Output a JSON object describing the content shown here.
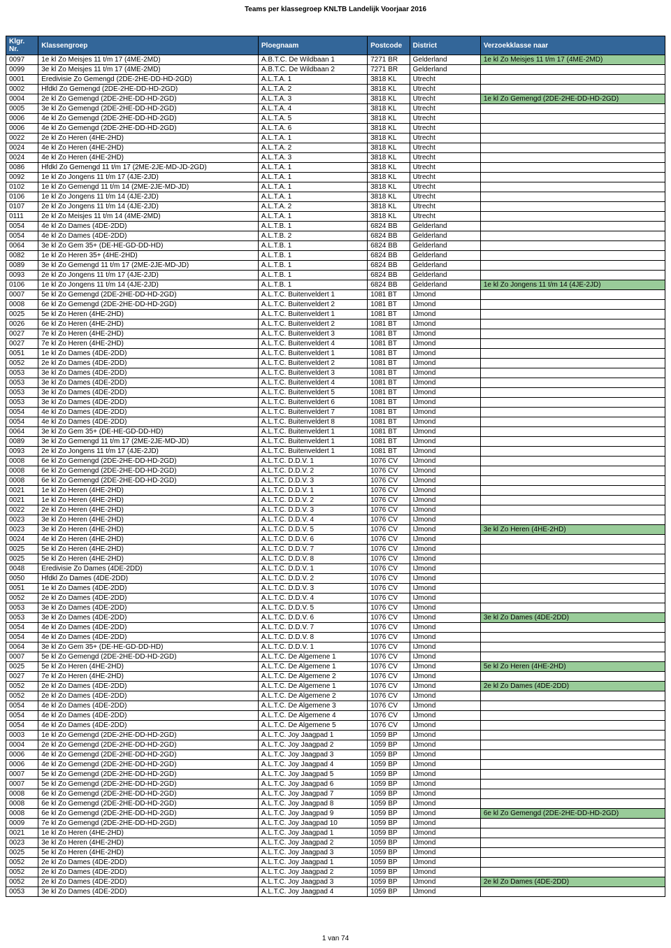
{
  "title": "Teams per klassegroep KNLTB Landelijk Voorjaar 2016",
  "headers": {
    "klgr": "Klgr. Nr.",
    "klassen": "Klassengroep",
    "ploeg": "Ploegnaam",
    "postcode": "Postcode",
    "district": "District",
    "verzoek": "Verzoekklasse naar"
  },
  "colors": {
    "header_bg": "#336699",
    "header_fg": "#ffffff",
    "highlight_bg": "#99cc99",
    "border": "#000000",
    "background": "#ffffff"
  },
  "widths": {
    "klgr": 42,
    "klassen": 286,
    "ploeg": 142,
    "postcode": 55,
    "district": 92,
    "verzoek": 240
  },
  "fontsize": 10,
  "page_number": "1 van 74",
  "rows": [
    {
      "klgr": "0097",
      "klassen": "1e kl Zo Meisjes 11 t/m 17 (4ME-2MD)",
      "ploeg": "A.B.T.C. De Wildbaan 1",
      "postcode": "7271 BR",
      "district": "Gelderland",
      "verzoek": "1e kl Zo Meisjes 11 t/m 17 (4ME-2MD)",
      "hi": true
    },
    {
      "klgr": "0099",
      "klassen": "3e kl Zo Meisjes 11 t/m 17 (4ME-2MD)",
      "ploeg": "A.B.T.C. De Wildbaan 2",
      "postcode": "7271 BR",
      "district": "Gelderland",
      "verzoek": "",
      "hi": false
    },
    {
      "klgr": "0001",
      "klassen": "Eredivisie Zo Gemengd (2DE-2HE-DD-HD-2GD)",
      "ploeg": "A.L.T.A. 1",
      "postcode": "3818 KL",
      "district": "Utrecht",
      "verzoek": "",
      "hi": false
    },
    {
      "klgr": "0002",
      "klassen": "Hfdkl Zo Gemengd (2DE-2HE-DD-HD-2GD)",
      "ploeg": "A.L.T.A. 2",
      "postcode": "3818 KL",
      "district": "Utrecht",
      "verzoek": "",
      "hi": false
    },
    {
      "klgr": "0004",
      "klassen": "2e kl Zo Gemengd (2DE-2HE-DD-HD-2GD)",
      "ploeg": "A.L.T.A. 3",
      "postcode": "3818 KL",
      "district": "Utrecht",
      "verzoek": "1e kl Zo Gemengd (2DE-2HE-DD-HD-2GD)",
      "hi": true
    },
    {
      "klgr": "0005",
      "klassen": "3e kl Zo Gemengd (2DE-2HE-DD-HD-2GD)",
      "ploeg": "A.L.T.A. 4",
      "postcode": "3818 KL",
      "district": "Utrecht",
      "verzoek": "",
      "hi": false
    },
    {
      "klgr": "0006",
      "klassen": "4e kl Zo Gemengd (2DE-2HE-DD-HD-2GD)",
      "ploeg": "A.L.T.A. 5",
      "postcode": "3818 KL",
      "district": "Utrecht",
      "verzoek": "",
      "hi": false
    },
    {
      "klgr": "0006",
      "klassen": "4e kl Zo Gemengd (2DE-2HE-DD-HD-2GD)",
      "ploeg": "A.L.T.A. 6",
      "postcode": "3818 KL",
      "district": "Utrecht",
      "verzoek": "",
      "hi": false
    },
    {
      "klgr": "0022",
      "klassen": "2e kl Zo Heren (4HE-2HD)",
      "ploeg": "A.L.T.A. 1",
      "postcode": "3818 KL",
      "district": "Utrecht",
      "verzoek": "",
      "hi": false
    },
    {
      "klgr": "0024",
      "klassen": "4e kl Zo Heren (4HE-2HD)",
      "ploeg": "A.L.T.A. 2",
      "postcode": "3818 KL",
      "district": "Utrecht",
      "verzoek": "",
      "hi": false
    },
    {
      "klgr": "0024",
      "klassen": "4e kl Zo Heren (4HE-2HD)",
      "ploeg": "A.L.T.A. 3",
      "postcode": "3818 KL",
      "district": "Utrecht",
      "verzoek": "",
      "hi": false
    },
    {
      "klgr": "0086",
      "klassen": "Hfdkl Zo Gemengd 11 t/m 17 (2ME-2JE-MD-JD-2GD)",
      "ploeg": "A.L.T.A. 1",
      "postcode": "3818 KL",
      "district": "Utrecht",
      "verzoek": "",
      "hi": false
    },
    {
      "klgr": "0092",
      "klassen": "1e kl Zo Jongens 11 t/m 17 (4JE-2JD)",
      "ploeg": "A.L.T.A. 1",
      "postcode": "3818 KL",
      "district": "Utrecht",
      "verzoek": "",
      "hi": false
    },
    {
      "klgr": "0102",
      "klassen": "1e kl Zo Gemengd 11 t/m 14 (2ME-2JE-MD-JD)",
      "ploeg": "A.L.T.A. 1",
      "postcode": "3818 KL",
      "district": "Utrecht",
      "verzoek": "",
      "hi": false
    },
    {
      "klgr": "0106",
      "klassen": "1e kl Zo Jongens 11 t/m 14 (4JE-2JD)",
      "ploeg": "A.L.T.A. 1",
      "postcode": "3818 KL",
      "district": "Utrecht",
      "verzoek": "",
      "hi": false
    },
    {
      "klgr": "0107",
      "klassen": "2e kl Zo Jongens 11 t/m 14 (4JE-2JD)",
      "ploeg": "A.L.T.A. 2",
      "postcode": "3818 KL",
      "district": "Utrecht",
      "verzoek": "",
      "hi": false
    },
    {
      "klgr": "0111",
      "klassen": "2e kl Zo Meisjes 11 t/m 14 (4ME-2MD)",
      "ploeg": "A.L.T.A. 1",
      "postcode": "3818 KL",
      "district": "Utrecht",
      "verzoek": "",
      "hi": false
    },
    {
      "klgr": "0054",
      "klassen": "4e kl Zo Dames (4DE-2DD)",
      "ploeg": "A.L.T.B. 1",
      "postcode": "6824 BB",
      "district": "Gelderland",
      "verzoek": "",
      "hi": false
    },
    {
      "klgr": "0054",
      "klassen": "4e kl Zo Dames (4DE-2DD)",
      "ploeg": "A.L.T.B. 2",
      "postcode": "6824 BB",
      "district": "Gelderland",
      "verzoek": "",
      "hi": false
    },
    {
      "klgr": "0064",
      "klassen": "3e kl Zo Gem 35+ (DE-HE-GD-DD-HD)",
      "ploeg": "A.L.T.B. 1",
      "postcode": "6824 BB",
      "district": "Gelderland",
      "verzoek": "",
      "hi": false
    },
    {
      "klgr": "0082",
      "klassen": "1e kl Zo Heren 35+ (4HE-2HD)",
      "ploeg": "A.L.T.B. 1",
      "postcode": "6824 BB",
      "district": "Gelderland",
      "verzoek": "",
      "hi": false
    },
    {
      "klgr": "0089",
      "klassen": "3e kl Zo Gemengd 11 t/m 17 (2ME-2JE-MD-JD)",
      "ploeg": "A.L.T.B. 1",
      "postcode": "6824 BB",
      "district": "Gelderland",
      "verzoek": "",
      "hi": false
    },
    {
      "klgr": "0093",
      "klassen": "2e kl Zo Jongens 11 t/m 17 (4JE-2JD)",
      "ploeg": "A.L.T.B. 1",
      "postcode": "6824 BB",
      "district": "Gelderland",
      "verzoek": "",
      "hi": false
    },
    {
      "klgr": "0106",
      "klassen": "1e kl Zo Jongens 11 t/m 14 (4JE-2JD)",
      "ploeg": "A.L.T.B. 1",
      "postcode": "6824 BB",
      "district": "Gelderland",
      "verzoek": "1e kl Zo Jongens 11 t/m 14 (4JE-2JD)",
      "hi": true
    },
    {
      "klgr": "0007",
      "klassen": "5e kl Zo Gemengd (2DE-2HE-DD-HD-2GD)",
      "ploeg": "A.L.T.C. Buitenveldert 1",
      "postcode": "1081 BT",
      "district": "IJmond",
      "verzoek": "",
      "hi": false
    },
    {
      "klgr": "0008",
      "klassen": "6e kl Zo Gemengd (2DE-2HE-DD-HD-2GD)",
      "ploeg": "A.L.T.C. Buitenveldert 2",
      "postcode": "1081 BT",
      "district": "IJmond",
      "verzoek": "",
      "hi": false
    },
    {
      "klgr": "0025",
      "klassen": "5e kl Zo Heren (4HE-2HD)",
      "ploeg": "A.L.T.C. Buitenveldert 1",
      "postcode": "1081 BT",
      "district": "IJmond",
      "verzoek": "",
      "hi": false
    },
    {
      "klgr": "0026",
      "klassen": "6e kl Zo Heren (4HE-2HD)",
      "ploeg": "A.L.T.C. Buitenveldert 2",
      "postcode": "1081 BT",
      "district": "IJmond",
      "verzoek": "",
      "hi": false
    },
    {
      "klgr": "0027",
      "klassen": "7e kl Zo Heren (4HE-2HD)",
      "ploeg": "A.L.T.C. Buitenveldert 3",
      "postcode": "1081 BT",
      "district": "IJmond",
      "verzoek": "",
      "hi": false
    },
    {
      "klgr": "0027",
      "klassen": "7e kl Zo Heren (4HE-2HD)",
      "ploeg": "A.L.T.C. Buitenveldert 4",
      "postcode": "1081 BT",
      "district": "IJmond",
      "verzoek": "",
      "hi": false
    },
    {
      "klgr": "0051",
      "klassen": "1e kl Zo Dames (4DE-2DD)",
      "ploeg": "A.L.T.C. Buitenveldert 1",
      "postcode": "1081 BT",
      "district": "IJmond",
      "verzoek": "",
      "hi": false
    },
    {
      "klgr": "0052",
      "klassen": "2e kl Zo Dames (4DE-2DD)",
      "ploeg": "A.L.T.C. Buitenveldert 2",
      "postcode": "1081 BT",
      "district": "IJmond",
      "verzoek": "",
      "hi": false
    },
    {
      "klgr": "0053",
      "klassen": "3e kl Zo Dames (4DE-2DD)",
      "ploeg": "A.L.T.C. Buitenveldert 3",
      "postcode": "1081 BT",
      "district": "IJmond",
      "verzoek": "",
      "hi": false
    },
    {
      "klgr": "0053",
      "klassen": "3e kl Zo Dames (4DE-2DD)",
      "ploeg": "A.L.T.C. Buitenveldert 4",
      "postcode": "1081 BT",
      "district": "IJmond",
      "verzoek": "",
      "hi": false
    },
    {
      "klgr": "0053",
      "klassen": "3e kl Zo Dames (4DE-2DD)",
      "ploeg": "A.L.T.C. Buitenveldert 5",
      "postcode": "1081 BT",
      "district": "IJmond",
      "verzoek": "",
      "hi": false
    },
    {
      "klgr": "0053",
      "klassen": "3e kl Zo Dames (4DE-2DD)",
      "ploeg": "A.L.T.C. Buitenveldert 6",
      "postcode": "1081 BT",
      "district": "IJmond",
      "verzoek": "",
      "hi": false
    },
    {
      "klgr": "0054",
      "klassen": "4e kl Zo Dames (4DE-2DD)",
      "ploeg": "A.L.T.C. Buitenveldert 7",
      "postcode": "1081 BT",
      "district": "IJmond",
      "verzoek": "",
      "hi": false
    },
    {
      "klgr": "0054",
      "klassen": "4e kl Zo Dames (4DE-2DD)",
      "ploeg": "A.L.T.C. Buitenveldert 8",
      "postcode": "1081 BT",
      "district": "IJmond",
      "verzoek": "",
      "hi": false
    },
    {
      "klgr": "0064",
      "klassen": "3e kl Zo Gem 35+ (DE-HE-GD-DD-HD)",
      "ploeg": "A.L.T.C. Buitenveldert 1",
      "postcode": "1081 BT",
      "district": "IJmond",
      "verzoek": "",
      "hi": false
    },
    {
      "klgr": "0089",
      "klassen": "3e kl Zo Gemengd 11 t/m 17 (2ME-2JE-MD-JD)",
      "ploeg": "A.L.T.C. Buitenveldert 1",
      "postcode": "1081 BT",
      "district": "IJmond",
      "verzoek": "",
      "hi": false
    },
    {
      "klgr": "0093",
      "klassen": "2e kl Zo Jongens 11 t/m 17 (4JE-2JD)",
      "ploeg": "A.L.T.C. Buitenveldert 1",
      "postcode": "1081 BT",
      "district": "IJmond",
      "verzoek": "",
      "hi": false
    },
    {
      "klgr": "0008",
      "klassen": "6e kl Zo Gemengd (2DE-2HE-DD-HD-2GD)",
      "ploeg": "A.L.T.C. D.D.V. 1",
      "postcode": "1076 CV",
      "district": "IJmond",
      "verzoek": "",
      "hi": false
    },
    {
      "klgr": "0008",
      "klassen": "6e kl Zo Gemengd (2DE-2HE-DD-HD-2GD)",
      "ploeg": "A.L.T.C. D.D.V. 2",
      "postcode": "1076 CV",
      "district": "IJmond",
      "verzoek": "",
      "hi": false
    },
    {
      "klgr": "0008",
      "klassen": "6e kl Zo Gemengd (2DE-2HE-DD-HD-2GD)",
      "ploeg": "A.L.T.C. D.D.V. 3",
      "postcode": "1076 CV",
      "district": "IJmond",
      "verzoek": "",
      "hi": false
    },
    {
      "klgr": "0021",
      "klassen": "1e kl Zo Heren (4HE-2HD)",
      "ploeg": "A.L.T.C. D.D.V. 1",
      "postcode": "1076 CV",
      "district": "IJmond",
      "verzoek": "",
      "hi": false
    },
    {
      "klgr": "0021",
      "klassen": "1e kl Zo Heren (4HE-2HD)",
      "ploeg": "A.L.T.C. D.D.V. 2",
      "postcode": "1076 CV",
      "district": "IJmond",
      "verzoek": "",
      "hi": false
    },
    {
      "klgr": "0022",
      "klassen": "2e kl Zo Heren (4HE-2HD)",
      "ploeg": "A.L.T.C. D.D.V. 3",
      "postcode": "1076 CV",
      "district": "IJmond",
      "verzoek": "",
      "hi": false
    },
    {
      "klgr": "0023",
      "klassen": "3e kl Zo Heren (4HE-2HD)",
      "ploeg": "A.L.T.C. D.D.V. 4",
      "postcode": "1076 CV",
      "district": "IJmond",
      "verzoek": "",
      "hi": false
    },
    {
      "klgr": "0023",
      "klassen": "3e kl Zo Heren (4HE-2HD)",
      "ploeg": "A.L.T.C. D.D.V. 5",
      "postcode": "1076 CV",
      "district": "IJmond",
      "verzoek": "3e kl Zo Heren (4HE-2HD)",
      "hi": true
    },
    {
      "klgr": "0024",
      "klassen": "4e kl Zo Heren (4HE-2HD)",
      "ploeg": "A.L.T.C. D.D.V. 6",
      "postcode": "1076 CV",
      "district": "IJmond",
      "verzoek": "",
      "hi": false
    },
    {
      "klgr": "0025",
      "klassen": "5e kl Zo Heren (4HE-2HD)",
      "ploeg": "A.L.T.C. D.D.V. 7",
      "postcode": "1076 CV",
      "district": "IJmond",
      "verzoek": "",
      "hi": false
    },
    {
      "klgr": "0025",
      "klassen": "5e kl Zo Heren (4HE-2HD)",
      "ploeg": "A.L.T.C. D.D.V. 8",
      "postcode": "1076 CV",
      "district": "IJmond",
      "verzoek": "",
      "hi": false
    },
    {
      "klgr": "0048",
      "klassen": "Eredivisie Zo Dames (4DE-2DD)",
      "ploeg": "A.L.T.C. D.D.V. 1",
      "postcode": "1076 CV",
      "district": "IJmond",
      "verzoek": "",
      "hi": false
    },
    {
      "klgr": "0050",
      "klassen": "Hfdkl Zo Dames (4DE-2DD)",
      "ploeg": "A.L.T.C. D.D.V. 2",
      "postcode": "1076 CV",
      "district": "IJmond",
      "verzoek": "",
      "hi": false
    },
    {
      "klgr": "0051",
      "klassen": "1e kl Zo Dames (4DE-2DD)",
      "ploeg": "A.L.T.C. D.D.V. 3",
      "postcode": "1076 CV",
      "district": "IJmond",
      "verzoek": "",
      "hi": false
    },
    {
      "klgr": "0052",
      "klassen": "2e kl Zo Dames (4DE-2DD)",
      "ploeg": "A.L.T.C. D.D.V. 4",
      "postcode": "1076 CV",
      "district": "IJmond",
      "verzoek": "",
      "hi": false
    },
    {
      "klgr": "0053",
      "klassen": "3e kl Zo Dames (4DE-2DD)",
      "ploeg": "A.L.T.C. D.D.V. 5",
      "postcode": "1076 CV",
      "district": "IJmond",
      "verzoek": "",
      "hi": false
    },
    {
      "klgr": "0053",
      "klassen": "3e kl Zo Dames (4DE-2DD)",
      "ploeg": "A.L.T.C. D.D.V. 6",
      "postcode": "1076 CV",
      "district": "IJmond",
      "verzoek": "3e kl Zo Dames (4DE-2DD)",
      "hi": true
    },
    {
      "klgr": "0054",
      "klassen": "4e kl Zo Dames (4DE-2DD)",
      "ploeg": "A.L.T.C. D.D.V. 7",
      "postcode": "1076 CV",
      "district": "IJmond",
      "verzoek": "",
      "hi": false
    },
    {
      "klgr": "0054",
      "klassen": "4e kl Zo Dames (4DE-2DD)",
      "ploeg": "A.L.T.C. D.D.V. 8",
      "postcode": "1076 CV",
      "district": "IJmond",
      "verzoek": "",
      "hi": false
    },
    {
      "klgr": "0064",
      "klassen": "3e kl Zo Gem 35+ (DE-HE-GD-DD-HD)",
      "ploeg": "A.L.T.C. D.D.V. 1",
      "postcode": "1076 CV",
      "district": "IJmond",
      "verzoek": "",
      "hi": false
    },
    {
      "klgr": "0007",
      "klassen": "5e kl Zo Gemengd (2DE-2HE-DD-HD-2GD)",
      "ploeg": "A.L.T.C. De Algemene 1",
      "postcode": "1076 CV",
      "district": "IJmond",
      "verzoek": "",
      "hi": false
    },
    {
      "klgr": "0025",
      "klassen": "5e kl Zo Heren (4HE-2HD)",
      "ploeg": "A.L.T.C. De Algemene 1",
      "postcode": "1076 CV",
      "district": "IJmond",
      "verzoek": "5e kl Zo Heren (4HE-2HD)",
      "hi": true
    },
    {
      "klgr": "0027",
      "klassen": "7e kl Zo Heren (4HE-2HD)",
      "ploeg": "A.L.T.C. De Algemene 2",
      "postcode": "1076 CV",
      "district": "IJmond",
      "verzoek": "",
      "hi": false
    },
    {
      "klgr": "0052",
      "klassen": "2e kl Zo Dames (4DE-2DD)",
      "ploeg": "A.L.T.C. De Algemene 1",
      "postcode": "1076 CV",
      "district": "IJmond",
      "verzoek": "2e kl Zo Dames (4DE-2DD)",
      "hi": true
    },
    {
      "klgr": "0052",
      "klassen": "2e kl Zo Dames (4DE-2DD)",
      "ploeg": "A.L.T.C. De Algemene 2",
      "postcode": "1076 CV",
      "district": "IJmond",
      "verzoek": "",
      "hi": false
    },
    {
      "klgr": "0054",
      "klassen": "4e kl Zo Dames (4DE-2DD)",
      "ploeg": "A.L.T.C. De Algemene 3",
      "postcode": "1076 CV",
      "district": "IJmond",
      "verzoek": "",
      "hi": false
    },
    {
      "klgr": "0054",
      "klassen": "4e kl Zo Dames (4DE-2DD)",
      "ploeg": "A.L.T.C. De Algemene 4",
      "postcode": "1076 CV",
      "district": "IJmond",
      "verzoek": "",
      "hi": false
    },
    {
      "klgr": "0054",
      "klassen": "4e kl Zo Dames (4DE-2DD)",
      "ploeg": "A.L.T.C. De Algemene 5",
      "postcode": "1076 CV",
      "district": "IJmond",
      "verzoek": "",
      "hi": false
    },
    {
      "klgr": "0003",
      "klassen": "1e kl Zo Gemengd (2DE-2HE-DD-HD-2GD)",
      "ploeg": "A.L.T.C. Joy Jaagpad 1",
      "postcode": "1059 BP",
      "district": "IJmond",
      "verzoek": "",
      "hi": false
    },
    {
      "klgr": "0004",
      "klassen": "2e kl Zo Gemengd (2DE-2HE-DD-HD-2GD)",
      "ploeg": "A.L.T.C. Joy Jaagpad 2",
      "postcode": "1059 BP",
      "district": "IJmond",
      "verzoek": "",
      "hi": false
    },
    {
      "klgr": "0006",
      "klassen": "4e kl Zo Gemengd (2DE-2HE-DD-HD-2GD)",
      "ploeg": "A.L.T.C. Joy Jaagpad 3",
      "postcode": "1059 BP",
      "district": "IJmond",
      "verzoek": "",
      "hi": false
    },
    {
      "klgr": "0006",
      "klassen": "4e kl Zo Gemengd (2DE-2HE-DD-HD-2GD)",
      "ploeg": "A.L.T.C. Joy Jaagpad 4",
      "postcode": "1059 BP",
      "district": "IJmond",
      "verzoek": "",
      "hi": false
    },
    {
      "klgr": "0007",
      "klassen": "5e kl Zo Gemengd (2DE-2HE-DD-HD-2GD)",
      "ploeg": "A.L.T.C. Joy Jaagpad 5",
      "postcode": "1059 BP",
      "district": "IJmond",
      "verzoek": "",
      "hi": false
    },
    {
      "klgr": "0007",
      "klassen": "5e kl Zo Gemengd (2DE-2HE-DD-HD-2GD)",
      "ploeg": "A.L.T.C. Joy Jaagpad 6",
      "postcode": "1059 BP",
      "district": "IJmond",
      "verzoek": "",
      "hi": false
    },
    {
      "klgr": "0008",
      "klassen": "6e kl Zo Gemengd (2DE-2HE-DD-HD-2GD)",
      "ploeg": "A.L.T.C. Joy Jaagpad 7",
      "postcode": "1059 BP",
      "district": "IJmond",
      "verzoek": "",
      "hi": false
    },
    {
      "klgr": "0008",
      "klassen": "6e kl Zo Gemengd (2DE-2HE-DD-HD-2GD)",
      "ploeg": "A.L.T.C. Joy Jaagpad 8",
      "postcode": "1059 BP",
      "district": "IJmond",
      "verzoek": "",
      "hi": false
    },
    {
      "klgr": "0008",
      "klassen": "6e kl Zo Gemengd (2DE-2HE-DD-HD-2GD)",
      "ploeg": "A.L.T.C. Joy Jaagpad 9",
      "postcode": "1059 BP",
      "district": "IJmond",
      "verzoek": "6e kl Zo Gemengd (2DE-2HE-DD-HD-2GD)",
      "hi": true
    },
    {
      "klgr": "0009",
      "klassen": "7e kl Zo Gemengd (2DE-2HE-DD-HD-2GD)",
      "ploeg": "A.L.T.C. Joy Jaagpad 10",
      "postcode": "1059 BP",
      "district": "IJmond",
      "verzoek": "",
      "hi": false
    },
    {
      "klgr": "0021",
      "klassen": "1e kl Zo Heren (4HE-2HD)",
      "ploeg": "A.L.T.C. Joy Jaagpad 1",
      "postcode": "1059 BP",
      "district": "IJmond",
      "verzoek": "",
      "hi": false
    },
    {
      "klgr": "0023",
      "klassen": "3e kl Zo Heren (4HE-2HD)",
      "ploeg": "A.L.T.C. Joy Jaagpad 2",
      "postcode": "1059 BP",
      "district": "IJmond",
      "verzoek": "",
      "hi": false
    },
    {
      "klgr": "0025",
      "klassen": "5e kl Zo Heren (4HE-2HD)",
      "ploeg": "A.L.T.C. Joy Jaagpad 3",
      "postcode": "1059 BP",
      "district": "IJmond",
      "verzoek": "",
      "hi": false
    },
    {
      "klgr": "0052",
      "klassen": "2e kl Zo Dames (4DE-2DD)",
      "ploeg": "A.L.T.C. Joy Jaagpad 1",
      "postcode": "1059 BP",
      "district": "IJmond",
      "verzoek": "",
      "hi": false
    },
    {
      "klgr": "0052",
      "klassen": "2e kl Zo Dames (4DE-2DD)",
      "ploeg": "A.L.T.C. Joy Jaagpad 2",
      "postcode": "1059 BP",
      "district": "IJmond",
      "verzoek": "",
      "hi": false
    },
    {
      "klgr": "0052",
      "klassen": "2e kl Zo Dames (4DE-2DD)",
      "ploeg": "A.L.T.C. Joy Jaagpad 3",
      "postcode": "1059 BP",
      "district": "IJmond",
      "verzoek": "2e kl Zo Dames (4DE-2DD)",
      "hi": true
    },
    {
      "klgr": "0053",
      "klassen": "3e kl Zo Dames (4DE-2DD)",
      "ploeg": "A.L.T.C. Joy Jaagpad 4",
      "postcode": "1059 BP",
      "district": "IJmond",
      "verzoek": "",
      "hi": false
    }
  ]
}
